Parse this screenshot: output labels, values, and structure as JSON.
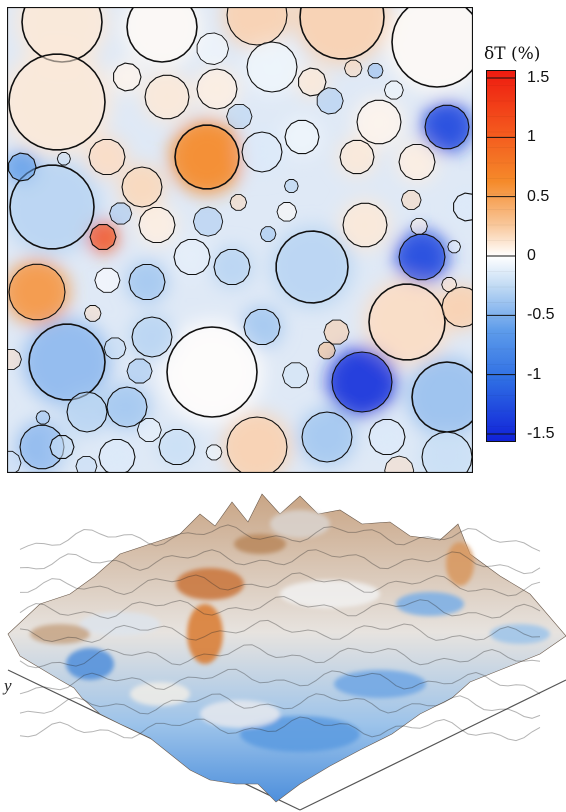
{
  "colorbar": {
    "title": "δT (%)",
    "ticks": [
      "1.5",
      "1",
      "0.5",
      "0",
      "-0.5",
      "-1",
      "-1.5"
    ],
    "range": [
      -1.5,
      1.5
    ],
    "colors": {
      "max": "#ee1a10",
      "high": "#f58a2a",
      "mid_high": "#f9d2b1",
      "zero": "#ffffff",
      "mid_low": "#b9d5f2",
      "low": "#3b85e6",
      "min": "#1020d8"
    }
  },
  "surface_plot": {
    "axis_label": "y"
  }
}
